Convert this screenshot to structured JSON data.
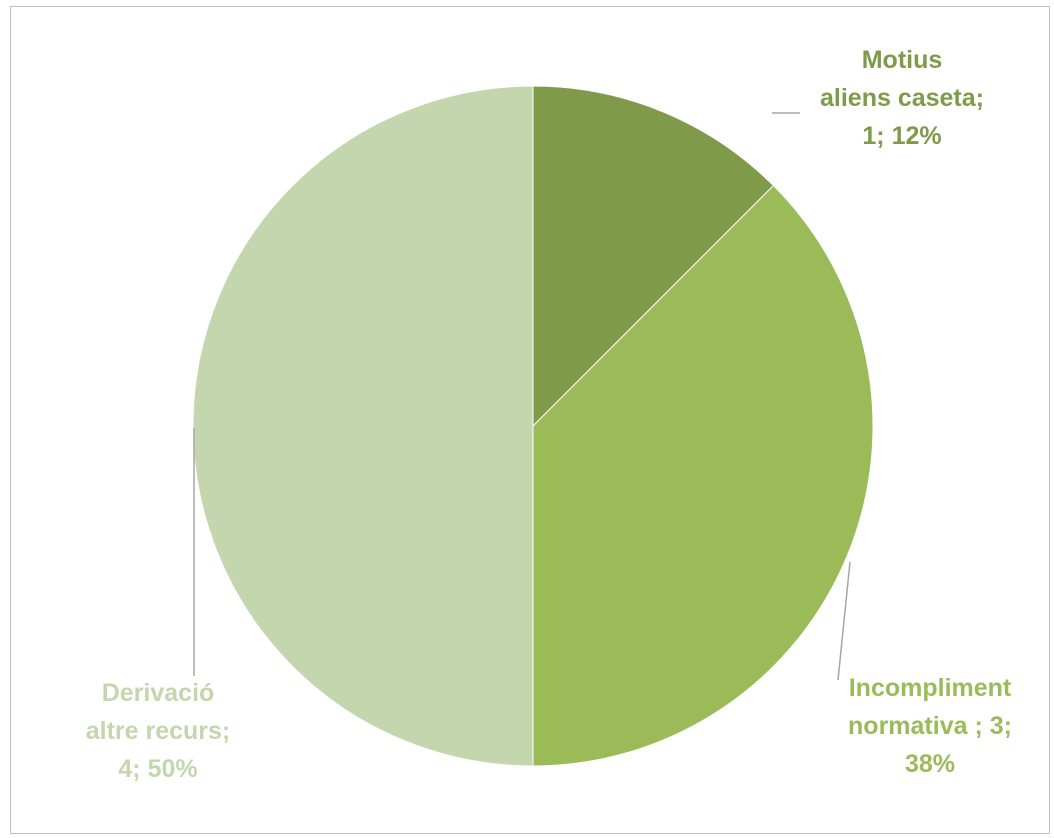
{
  "chart_data": {
    "type": "pie",
    "title": "",
    "slices": [
      {
        "category": "Motius aliens caseta",
        "value": 1,
        "percent": "12%",
        "label_lines": [
          "Motius",
          "aliens caseta;",
          "1; 12%"
        ],
        "color": "#7f9a48"
      },
      {
        "category": "Incompliment normativa",
        "value": 3,
        "percent": "38%",
        "label_lines": [
          "Incompliment",
          "normativa ; 3;",
          "38%"
        ],
        "color": "#9bbb59"
      },
      {
        "category": "Derivació altre recurs",
        "value": 4,
        "percent": "50%",
        "label_lines": [
          "Derivació",
          "altre recurs;",
          "4; 50%"
        ],
        "color": "#c4d6ad"
      }
    ],
    "start_angle": "top",
    "direction": "clockwise",
    "legend": "none",
    "leader_line_color": "#a6a6a6"
  }
}
